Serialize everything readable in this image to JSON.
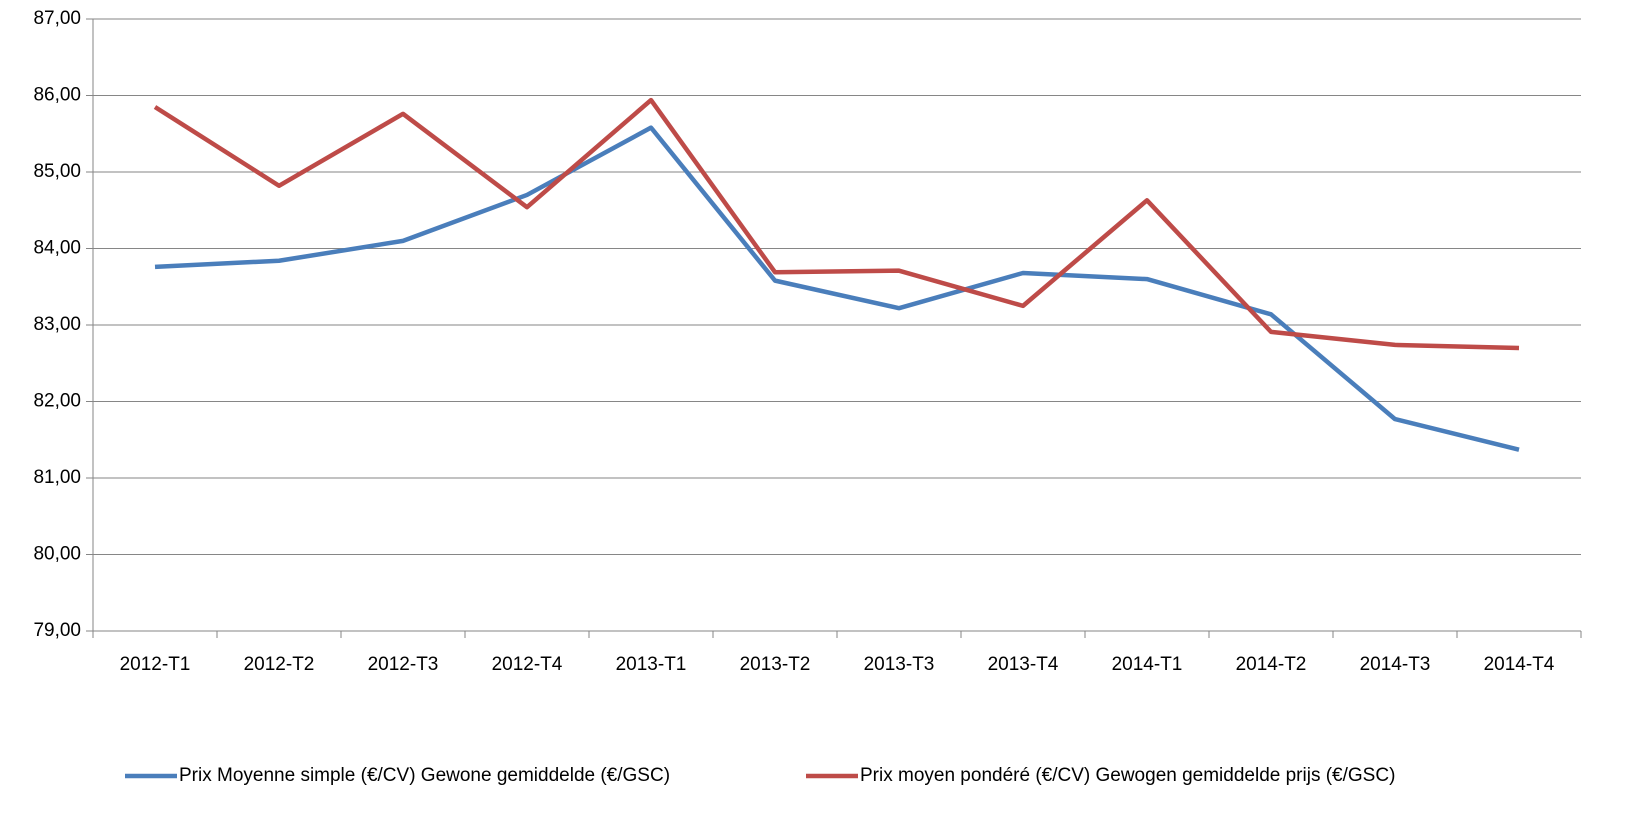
{
  "chart_data": {
    "type": "line",
    "categories": [
      "2012-T1",
      "2012-T2",
      "2012-T3",
      "2012-T4",
      "2013-T1",
      "2013-T2",
      "2013-T3",
      "2013-T4",
      "2014-T1",
      "2014-T2",
      "2014-T3",
      "2014-T4"
    ],
    "series": [
      {
        "name": "Prix Moyenne simple (€/CV) Gewone gemiddelde (€/GSC)",
        "color": "#4a7ebb",
        "values": [
          83.76,
          83.84,
          84.1,
          84.7,
          85.58,
          83.58,
          83.22,
          83.68,
          83.6,
          83.14,
          81.77,
          81.37
        ]
      },
      {
        "name": "Prix moyen pondéré (€/CV) Gewogen gemiddelde prijs (€/GSC)",
        "color": "#be4b48",
        "values": [
          85.85,
          84.82,
          85.76,
          84.54,
          85.94,
          83.69,
          83.71,
          83.25,
          84.63,
          82.91,
          82.74,
          82.7
        ]
      }
    ],
    "ylim": [
      79,
      87
    ],
    "yticks": [
      {
        "value": 79,
        "label": "79,00"
      },
      {
        "value": 80,
        "label": "80,00"
      },
      {
        "value": 81,
        "label": "81,00"
      },
      {
        "value": 82,
        "label": "82,00"
      },
      {
        "value": 83,
        "label": "83,00"
      },
      {
        "value": 84,
        "label": "84,00"
      },
      {
        "value": 85,
        "label": "85,00"
      },
      {
        "value": 86,
        "label": "86,00"
      },
      {
        "value": 87,
        "label": "87,00"
      }
    ],
    "grid": true,
    "legend": "bottom"
  }
}
